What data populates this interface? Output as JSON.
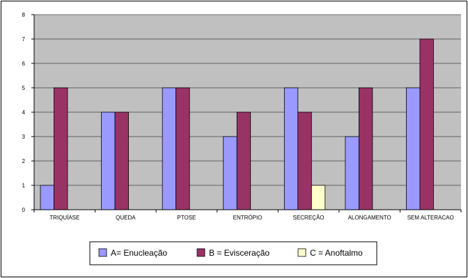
{
  "chart_data": {
    "type": "bar",
    "categories": [
      "TRIQUÍASE",
      "QUEDA",
      "PTOSE",
      "ENTRÓPIO",
      "SECREÇÃO",
      "ALONGAMENTO",
      "SEM ALTERACAO"
    ],
    "series": [
      {
        "name": "A= Enucleação",
        "values": [
          1,
          4,
          5,
          3,
          5,
          3,
          5
        ],
        "color": "#9999ff"
      },
      {
        "name": "B = Evisceração",
        "values": [
          5,
          4,
          5,
          4,
          4,
          5,
          7
        ],
        "color": "#993366"
      },
      {
        "name": "C = Anoftalmo",
        "values": [
          null,
          null,
          null,
          null,
          1,
          null,
          null
        ],
        "color": "#ffffcc"
      }
    ],
    "yticks": [
      "0",
      "1",
      "2",
      "3",
      "4",
      "5",
      "6",
      "7",
      "8"
    ],
    "ylim": [
      0,
      8
    ],
    "grid": true,
    "plot_background": "#c0c0c0",
    "legend_position": "bottom"
  }
}
